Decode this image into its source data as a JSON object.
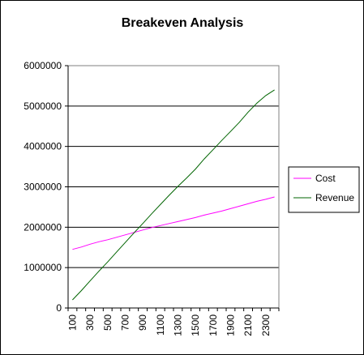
{
  "chart_data": {
    "type": "line",
    "title": "Breakeven Analysis",
    "xlabel": "",
    "ylabel": "",
    "x": [
      100,
      200,
      300,
      400,
      500,
      600,
      700,
      800,
      900,
      1000,
      1100,
      1200,
      1300,
      1400,
      1500,
      1600,
      1700,
      1800,
      1900,
      2000,
      2100,
      2200,
      2300,
      2400
    ],
    "x_tick_labels": [
      "100",
      "300",
      "500",
      "700",
      "900",
      "1100",
      "1300",
      "1500",
      "1700",
      "1900",
      "2100",
      "2300"
    ],
    "y_tick_labels": [
      "0",
      "1000000",
      "2000000",
      "3000000",
      "4000000",
      "5000000",
      "6000000"
    ],
    "ylim": [
      0,
      6000000
    ],
    "grid": "horizontal major gridlines",
    "legend_position": "right",
    "series": [
      {
        "name": "Cost",
        "color": "#ff00ff",
        "values": [
          1450000,
          1510000,
          1580000,
          1640000,
          1690000,
          1750000,
          1810000,
          1870000,
          1930000,
          1990000,
          2040000,
          2090000,
          2140000,
          2190000,
          2240000,
          2300000,
          2350000,
          2400000,
          2460000,
          2520000,
          2580000,
          2640000,
          2690000,
          2750000
        ]
      },
      {
        "name": "Revenue",
        "color": "#006400",
        "values": [
          200000,
          430000,
          670000,
          910000,
          1140000,
          1380000,
          1620000,
          1860000,
          2090000,
          2330000,
          2560000,
          2790000,
          3010000,
          3220000,
          3440000,
          3690000,
          3920000,
          4150000,
          4370000,
          4600000,
          4850000,
          5070000,
          5260000,
          5400000
        ]
      }
    ]
  }
}
